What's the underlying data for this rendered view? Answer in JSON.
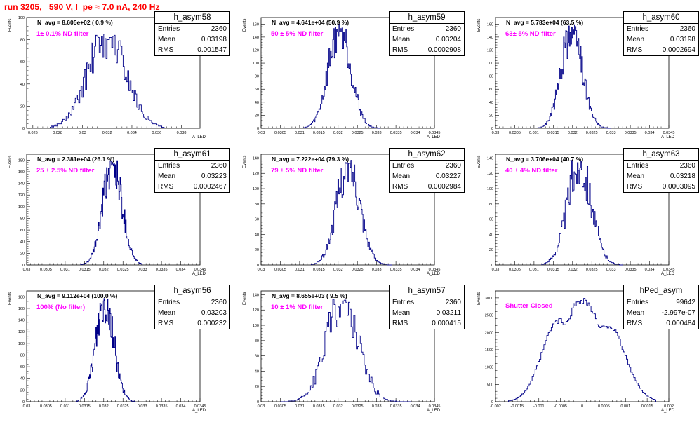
{
  "page": {
    "title": "run 3205,   590 V, I_pe ≈ 7.0 nA, 240 Hz"
  },
  "chart_data": [
    {
      "id": "h_asym58",
      "type": "bar",
      "title": "h_asym58",
      "navg": "N_avg = 8.605e+02 ( 0.9 %)",
      "filter": "1± 0.1% ND filter",
      "stats": [
        [
          "Entries",
          "2360"
        ],
        [
          "Mean",
          "0.03198"
        ],
        [
          "RMS",
          "0.001547"
        ]
      ],
      "ylabel": "Events",
      "xlabel": "A_LED",
      "xlim": [
        0.0255,
        0.0395
      ],
      "ylim": [
        0,
        100
      ],
      "xticks": [
        0.026,
        0.028,
        0.03,
        0.032,
        0.034,
        0.036,
        0.038
      ],
      "xticklabels": [
        "0.026",
        "0.028",
        "0.03",
        "0.032",
        "0.034",
        "0.036",
        "0.038"
      ],
      "yticks": [
        0,
        20,
        40,
        60,
        80,
        100
      ],
      "hist": {
        "center": 0.03198,
        "sigma": 0.00155,
        "peak": 86,
        "x_min": 0.0274,
        "x_max": 0.0366,
        "nbins": 100,
        "seed": 58
      }
    },
    {
      "id": "h_asym59",
      "type": "bar",
      "title": "h_asym59",
      "navg": "N_avg = 4.641e+04 (50.9 %)",
      "filter": "50 ± 5% ND filter",
      "stats": [
        [
          "Entries",
          "2360"
        ],
        [
          "Mean",
          "0.03204"
        ],
        [
          "RMS",
          "0.0002908"
        ]
      ],
      "ylabel": "Events",
      "xlabel": "A_LED",
      "xlim": [
        0.03,
        0.0345
      ],
      "ylim": [
        0,
        170
      ],
      "xticks": [
        0.03,
        0.0305,
        0.031,
        0.0315,
        0.032,
        0.0325,
        0.033,
        0.0335,
        0.034,
        0.0345
      ],
      "xticklabels": [
        "0.03",
        "0.0305",
        "0.031",
        "0.0315",
        "0.032",
        "0.0325",
        "0.033",
        "0.0335",
        "0.034",
        "0.0345"
      ],
      "yticks": [
        0,
        20,
        40,
        60,
        80,
        100,
        120,
        140,
        160
      ],
      "hist": {
        "center": 0.03204,
        "sigma": 0.00029,
        "peak": 160,
        "x_min": 0.0311,
        "x_max": 0.0331,
        "nbins": 100,
        "seed": 59
      }
    },
    {
      "id": "h_asym60",
      "type": "bar",
      "title": "h_asym60",
      "navg": "N_avg = 5.783e+04 (63.5 %)",
      "filter": "63± 5% ND filter",
      "stats": [
        [
          "Entries",
          "2360"
        ],
        [
          "Mean",
          "0.03198"
        ],
        [
          "RMS",
          "0.0002694"
        ]
      ],
      "ylabel": "Events",
      "xlabel": "A_LED",
      "xlim": [
        0.03,
        0.0345
      ],
      "ylim": [
        0,
        170
      ],
      "xticks": [
        0.03,
        0.0305,
        0.031,
        0.0315,
        0.032,
        0.0325,
        0.033,
        0.0335,
        0.034,
        0.0345
      ],
      "xticklabels": [
        "0.03",
        "0.0305",
        "0.031",
        "0.0315",
        "0.032",
        "0.0325",
        "0.033",
        "0.0335",
        "0.034",
        "0.0345"
      ],
      "yticks": [
        0,
        20,
        40,
        60,
        80,
        100,
        120,
        140,
        160
      ],
      "hist": {
        "center": 0.03198,
        "sigma": 0.00027,
        "peak": 160,
        "x_min": 0.0311,
        "x_max": 0.033,
        "nbins": 100,
        "seed": 60
      }
    },
    {
      "id": "h_asym61",
      "type": "bar",
      "title": "h_asym61",
      "navg": "N_avg = 2.381e+04 (26.1 %)",
      "filter": "25 ± 2.5% ND filter",
      "stats": [
        [
          "Entries",
          "2360"
        ],
        [
          "Mean",
          "0.03223"
        ],
        [
          "RMS",
          "0.0002467"
        ]
      ],
      "ylabel": "Events",
      "xlabel": "A_LED",
      "xlim": [
        0.03,
        0.0345
      ],
      "ylim": [
        0,
        190
      ],
      "xticks": [
        0.03,
        0.0305,
        0.031,
        0.0315,
        0.032,
        0.0325,
        0.033,
        0.0335,
        0.034,
        0.0345
      ],
      "xticklabels": [
        "0.03",
        "0.0305",
        "0.031",
        "0.0315",
        "0.032",
        "0.0325",
        "0.033",
        "0.0335",
        "0.034",
        "0.0345"
      ],
      "yticks": [
        0,
        20,
        40,
        60,
        80,
        100,
        120,
        140,
        160,
        180
      ],
      "hist": {
        "center": 0.03223,
        "sigma": 0.000247,
        "peak": 180,
        "x_min": 0.0314,
        "x_max": 0.033,
        "nbins": 100,
        "seed": 61
      }
    },
    {
      "id": "h_asym62",
      "type": "bar",
      "title": "h_asym62",
      "navg": "N_avg = 7.222e+04 (79.3 %)",
      "filter": "79 ± 5% ND filter",
      "stats": [
        [
          "Entries",
          "2360"
        ],
        [
          "Mean",
          "0.03227"
        ],
        [
          "RMS",
          "0.0002984"
        ]
      ],
      "ylabel": "Events",
      "xlabel": "A_LED",
      "xlim": [
        0.03,
        0.0345
      ],
      "ylim": [
        0,
        145
      ],
      "xticks": [
        0.03,
        0.0305,
        0.031,
        0.0315,
        0.032,
        0.0325,
        0.033,
        0.0335,
        0.034,
        0.0345
      ],
      "xticklabels": [
        "0.03",
        "0.0305",
        "0.031",
        "0.0315",
        "0.032",
        "0.0325",
        "0.033",
        "0.0335",
        "0.034",
        "0.0345"
      ],
      "yticks": [
        0,
        20,
        40,
        60,
        80,
        100,
        120,
        140
      ],
      "hist": {
        "center": 0.03227,
        "sigma": 0.000298,
        "peak": 138,
        "x_min": 0.0313,
        "x_max": 0.0334,
        "nbins": 100,
        "seed": 62
      }
    },
    {
      "id": "h_asym63",
      "type": "bar",
      "title": "h_asym63",
      "navg": "N_avg = 3.706e+04 (40.7 %)",
      "filter": "40 ± 4% ND filter",
      "stats": [
        [
          "Entries",
          "2360"
        ],
        [
          "Mean",
          "0.03218"
        ],
        [
          "RMS",
          "0.0003095"
        ]
      ],
      "ylabel": "Events",
      "xlabel": "A_LED",
      "xlim": [
        0.03,
        0.0345
      ],
      "ylim": [
        0,
        145
      ],
      "xticks": [
        0.03,
        0.0305,
        0.031,
        0.0315,
        0.032,
        0.0325,
        0.033,
        0.0335,
        0.034,
        0.0345
      ],
      "xticklabels": [
        "0.03",
        "0.0305",
        "0.031",
        "0.0315",
        "0.032",
        "0.0325",
        "0.033",
        "0.0335",
        "0.034",
        "0.0345"
      ],
      "yticks": [
        0,
        20,
        40,
        60,
        80,
        100,
        120,
        140
      ],
      "hist": {
        "center": 0.03218,
        "sigma": 0.00031,
        "peak": 138,
        "x_min": 0.0312,
        "x_max": 0.0333,
        "nbins": 100,
        "seed": 63
      }
    },
    {
      "id": "h_asym56",
      "type": "bar",
      "title": "h_asym56",
      "navg": "N_avg = 9.112e+04 (100.0 %)",
      "filter": "100% (No filter)",
      "stats": [
        [
          "Entries",
          "2360"
        ],
        [
          "Mean",
          "0.03203"
        ],
        [
          "RMS",
          "0.000232"
        ]
      ],
      "ylabel": "Events",
      "xlabel": "A_LED",
      "xlim": [
        0.03,
        0.0345
      ],
      "ylim": [
        0,
        190
      ],
      "xticks": [
        0.03,
        0.0305,
        0.031,
        0.0315,
        0.032,
        0.0325,
        0.033,
        0.0335,
        0.034,
        0.0345
      ],
      "xticklabels": [
        "0.03",
        "0.0305",
        "0.031",
        "0.0315",
        "0.032",
        "0.0325",
        "0.033",
        "0.0335",
        "0.034",
        "0.0345"
      ],
      "yticks": [
        0,
        20,
        40,
        60,
        80,
        100,
        120,
        140,
        160,
        180
      ],
      "hist": {
        "center": 0.03203,
        "sigma": 0.000232,
        "peak": 180,
        "x_min": 0.0313,
        "x_max": 0.0328,
        "nbins": 100,
        "seed": 56
      }
    },
    {
      "id": "h_asym57",
      "type": "bar",
      "title": "h_asym57",
      "navg": "N_avg = 8.655e+03 ( 9.5 %)",
      "filter": "10 ± 1% ND filter",
      "stats": [
        [
          "Entries",
          "2360"
        ],
        [
          "Mean",
          "0.03211"
        ],
        [
          "RMS",
          "0.000415"
        ]
      ],
      "ylabel": "Events",
      "xlabel": "A_LED",
      "xlim": [
        0.03,
        0.0345
      ],
      "ylim": [
        0,
        145
      ],
      "xticks": [
        0.03,
        0.0305,
        0.031,
        0.0315,
        0.032,
        0.0325,
        0.033,
        0.0335,
        0.034,
        0.0345
      ],
      "xticklabels": [
        "0.03",
        "0.0305",
        "0.031",
        "0.0315",
        "0.032",
        "0.0325",
        "0.033",
        "0.0335",
        "0.034",
        "0.0345"
      ],
      "yticks": [
        0,
        20,
        40,
        60,
        80,
        100,
        120,
        140
      ],
      "hist": {
        "center": 0.03211,
        "sigma": 0.000415,
        "peak": 138,
        "x_min": 0.0305,
        "x_max": 0.0339,
        "nbins": 100,
        "seed": 57
      }
    },
    {
      "id": "hPed_asym",
      "type": "bar",
      "title": "hPed_asym",
      "navg": "",
      "filter": "Shutter Closed",
      "stats": [
        [
          "Entries",
          "99642"
        ],
        [
          "Mean",
          "-2.997e-07"
        ],
        [
          "RMS",
          "0.000484"
        ]
      ],
      "ylabel": "Events",
      "xlabel": "A_LED",
      "xlim": [
        -0.002,
        0.002
      ],
      "ylim": [
        0,
        3200
      ],
      "xticks": [
        -0.002,
        -0.0015,
        -0.001,
        -0.0005,
        0,
        0.0005,
        0.001,
        0.0015,
        0.002
      ],
      "xticklabels": [
        "-0.002",
        "-0.0015",
        "-0.001",
        "-0.0005",
        "0",
        "0.0005",
        "0.001",
        "0.0015",
        "0.002"
      ],
      "yticks": [
        0,
        500,
        1000,
        1500,
        2000,
        2500,
        3000
      ],
      "hist": {
        "center": 0.0,
        "sigma": 0.000484,
        "peak": 2950,
        "x_min": -0.0017,
        "x_max": 0.0017,
        "nbins": 100,
        "seed": 99,
        "dip": true
      }
    }
  ]
}
